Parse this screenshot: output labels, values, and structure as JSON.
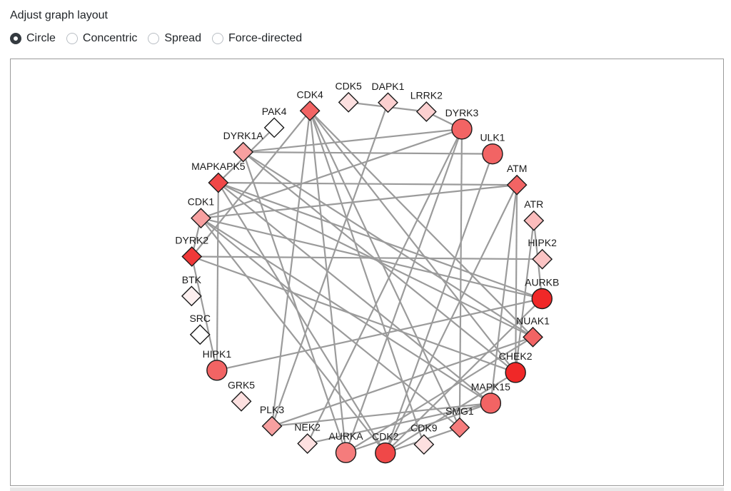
{
  "title": "Adjust graph layout",
  "layout_options": [
    {
      "label": "Circle",
      "selected": true
    },
    {
      "label": "Concentric",
      "selected": false
    },
    {
      "label": "Spread",
      "selected": false
    },
    {
      "label": "Force-directed",
      "selected": false
    }
  ],
  "graph": {
    "layout": "circle",
    "nodes": [
      {
        "id": "CDK5",
        "shape": "diamond",
        "color": "#fde0e0"
      },
      {
        "id": "DAPK1",
        "shape": "diamond",
        "color": "#fcd0d0"
      },
      {
        "id": "LRRK2",
        "shape": "diamond",
        "color": "#fcd0d0"
      },
      {
        "id": "DYRK3",
        "shape": "circle",
        "color": "#f26464"
      },
      {
        "id": "ULK1",
        "shape": "circle",
        "color": "#f26464"
      },
      {
        "id": "ATM",
        "shape": "diamond",
        "color": "#f26464"
      },
      {
        "id": "ATR",
        "shape": "diamond",
        "color": "#fbbcbc"
      },
      {
        "id": "HIPK2",
        "shape": "diamond",
        "color": "#fbc4c4"
      },
      {
        "id": "AURKB",
        "shape": "circle",
        "color": "#f02828"
      },
      {
        "id": "NUAK1",
        "shape": "diamond",
        "color": "#f26464"
      },
      {
        "id": "CHEK2",
        "shape": "circle",
        "color": "#f02828"
      },
      {
        "id": "MAPK15",
        "shape": "circle",
        "color": "#f26464"
      },
      {
        "id": "SMG1",
        "shape": "diamond",
        "color": "#f57c7c"
      },
      {
        "id": "CDK9",
        "shape": "diamond",
        "color": "#fde0e0"
      },
      {
        "id": "CDK2",
        "shape": "circle",
        "color": "#f04848"
      },
      {
        "id": "AURKA",
        "shape": "circle",
        "color": "#f57c7c"
      },
      {
        "id": "NEK2",
        "shape": "diamond",
        "color": "#fde0e0"
      },
      {
        "id": "PLK3",
        "shape": "diamond",
        "color": "#f7a0a0"
      },
      {
        "id": "GRK5",
        "shape": "diamond",
        "color": "#fde0e0"
      },
      {
        "id": "HIPK1",
        "shape": "circle",
        "color": "#f26464"
      },
      {
        "id": "SRC",
        "shape": "diamond",
        "color": "#ffffff"
      },
      {
        "id": "BTK",
        "shape": "diamond",
        "color": "#fef0f0"
      },
      {
        "id": "DYRK2",
        "shape": "diamond",
        "color": "#f03838"
      },
      {
        "id": "CDK1",
        "shape": "diamond",
        "color": "#f7a0a0"
      },
      {
        "id": "MAPKAPK5",
        "shape": "diamond",
        "color": "#f04848"
      },
      {
        "id": "DYRK1A",
        "shape": "diamond",
        "color": "#f7a0a0"
      },
      {
        "id": "PAK4",
        "shape": "diamond",
        "color": "#ffffff"
      },
      {
        "id": "CDK4",
        "shape": "diamond",
        "color": "#f26464"
      }
    ],
    "edges": [
      [
        "CDK5",
        "LRRK2"
      ],
      [
        "LRRK2",
        "DYRK3"
      ],
      [
        "DAPK1",
        "PLK3"
      ],
      [
        "CDK4",
        "PLK3"
      ],
      [
        "CDK4",
        "AURKA"
      ],
      [
        "CDK4",
        "NUAK1"
      ],
      [
        "CDK4",
        "SMG1"
      ],
      [
        "CDK4",
        "CDK9"
      ],
      [
        "CDK4",
        "CHEK2"
      ],
      [
        "DYRK3",
        "DYRK1A"
      ],
      [
        "DYRK3",
        "CDK1"
      ],
      [
        "DYRK3",
        "NEK2"
      ],
      [
        "DYRK3",
        "AURKA"
      ],
      [
        "DYRK3",
        "SMG1"
      ],
      [
        "ULK1",
        "DYRK1A"
      ],
      [
        "ULK1",
        "CDK2"
      ],
      [
        "ATM",
        "MAPKAPK5"
      ],
      [
        "ATM",
        "CHEK2"
      ],
      [
        "ATM",
        "MAPK15"
      ],
      [
        "ATM",
        "CDK2"
      ],
      [
        "ATM",
        "CDK1"
      ],
      [
        "ATR",
        "CHEK2"
      ],
      [
        "ATR",
        "AURKB"
      ],
      [
        "HIPK2",
        "DYRK2"
      ],
      [
        "AURKB",
        "CDK1"
      ],
      [
        "AURKB",
        "MAPKAPK5"
      ],
      [
        "AURKB",
        "HIPK1"
      ],
      [
        "AURKB",
        "CDK2"
      ],
      [
        "NUAK1",
        "DYRK1A"
      ],
      [
        "NUAK1",
        "AURKA"
      ],
      [
        "NUAK1",
        "MAPKAPK5"
      ],
      [
        "NUAK1",
        "PLK3"
      ],
      [
        "CHEK2",
        "DYRK2"
      ],
      [
        "CHEK2",
        "CDK2"
      ],
      [
        "CHEK2",
        "DYRK1A"
      ],
      [
        "MAPK15",
        "CDK1"
      ],
      [
        "MAPK15",
        "NEK2"
      ],
      [
        "MAPK15",
        "AURKA"
      ],
      [
        "MAPK15",
        "MAPKAPK5"
      ],
      [
        "MAPK15",
        "PLK3"
      ],
      [
        "SMG1",
        "CDK2"
      ],
      [
        "SMG1",
        "CDK1"
      ],
      [
        "MAPKAPK5",
        "HIPK1"
      ],
      [
        "MAPKAPK5",
        "PAK4"
      ],
      [
        "MAPKAPK5",
        "CDK2"
      ],
      [
        "DYRK2",
        "CDK1"
      ],
      [
        "DYRK2",
        "HIPK1"
      ],
      [
        "DYRK2",
        "CDK4"
      ],
      [
        "DYRK1A",
        "AURKA"
      ],
      [
        "CDK1",
        "CDK2"
      ]
    ]
  }
}
